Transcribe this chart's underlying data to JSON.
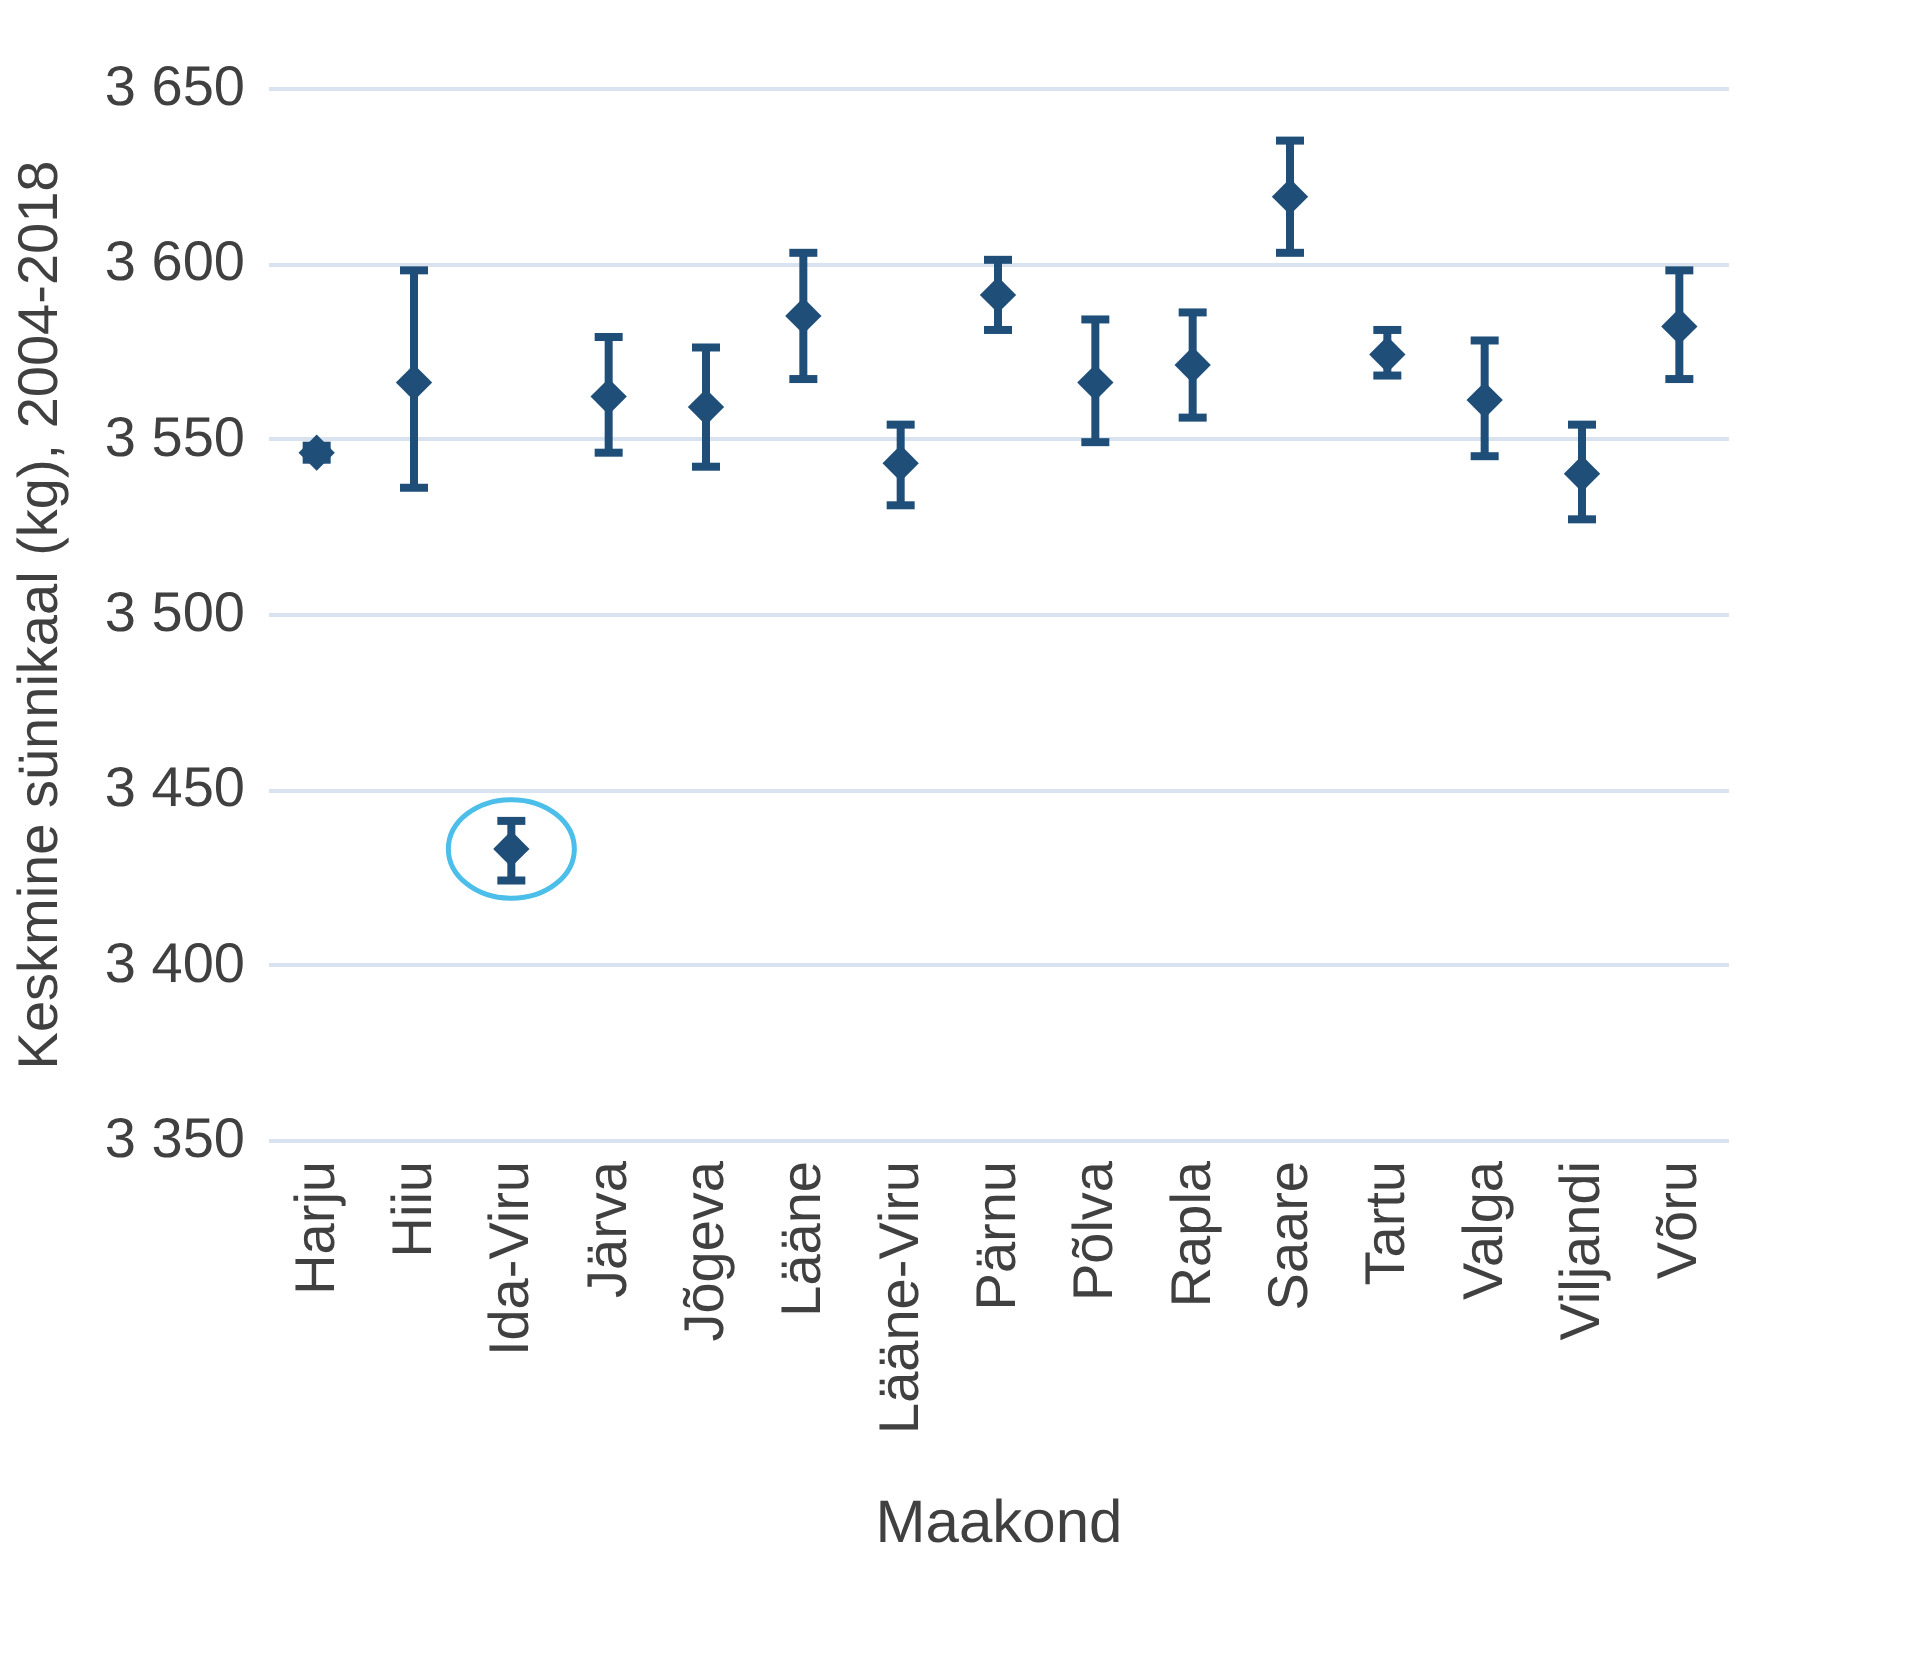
{
  "chart_data": {
    "type": "scatter",
    "xlabel": "Maakond",
    "ylabel": "Keskmine sünnikaal (kg), 2004-2018",
    "categories": [
      "Harju",
      "Hiiu",
      "Ida-Viru",
      "Järva",
      "Jõgeva",
      "Lääne",
      "Lääne-Viru",
      "Pärnu",
      "Põlva",
      "Rapla",
      "Saare",
      "Tartu",
      "Valga",
      "Viljandi",
      "Võru"
    ],
    "series": [
      {
        "color": "#1f4e79",
        "values": [
          3546,
          3566,
          3433,
          3562,
          3559,
          3585,
          3543,
          3591,
          3566,
          3571,
          3619,
          3574,
          3561,
          3540,
          3582
        ],
        "errors": [
          [
            3544,
            3548
          ],
          [
            3536,
            3598
          ],
          [
            3424,
            3441
          ],
          [
            3546,
            3579
          ],
          [
            3542,
            3576
          ],
          [
            3567,
            3603
          ],
          [
            3531,
            3554
          ],
          [
            3581,
            3601
          ],
          [
            3549,
            3584
          ],
          [
            3556,
            3586
          ],
          [
            3603,
            3635
          ],
          [
            3568,
            3581
          ],
          [
            3545,
            3578
          ],
          [
            3527,
            3554
          ],
          [
            3567,
            3598
          ]
        ]
      }
    ],
    "ylim": [
      3350,
      3650
    ],
    "yticks": [
      {
        "value": 3350,
        "label": "3 350"
      },
      {
        "value": 3400,
        "label": "3 400"
      },
      {
        "value": 3450,
        "label": "3 450"
      },
      {
        "value": 3500,
        "label": "3 500"
      },
      {
        "value": 3550,
        "label": "3 550"
      },
      {
        "value": 3600,
        "label": "3 600"
      },
      {
        "value": 3650,
        "label": "3 650"
      }
    ],
    "grid": "y",
    "marker": "diamond"
  }
}
